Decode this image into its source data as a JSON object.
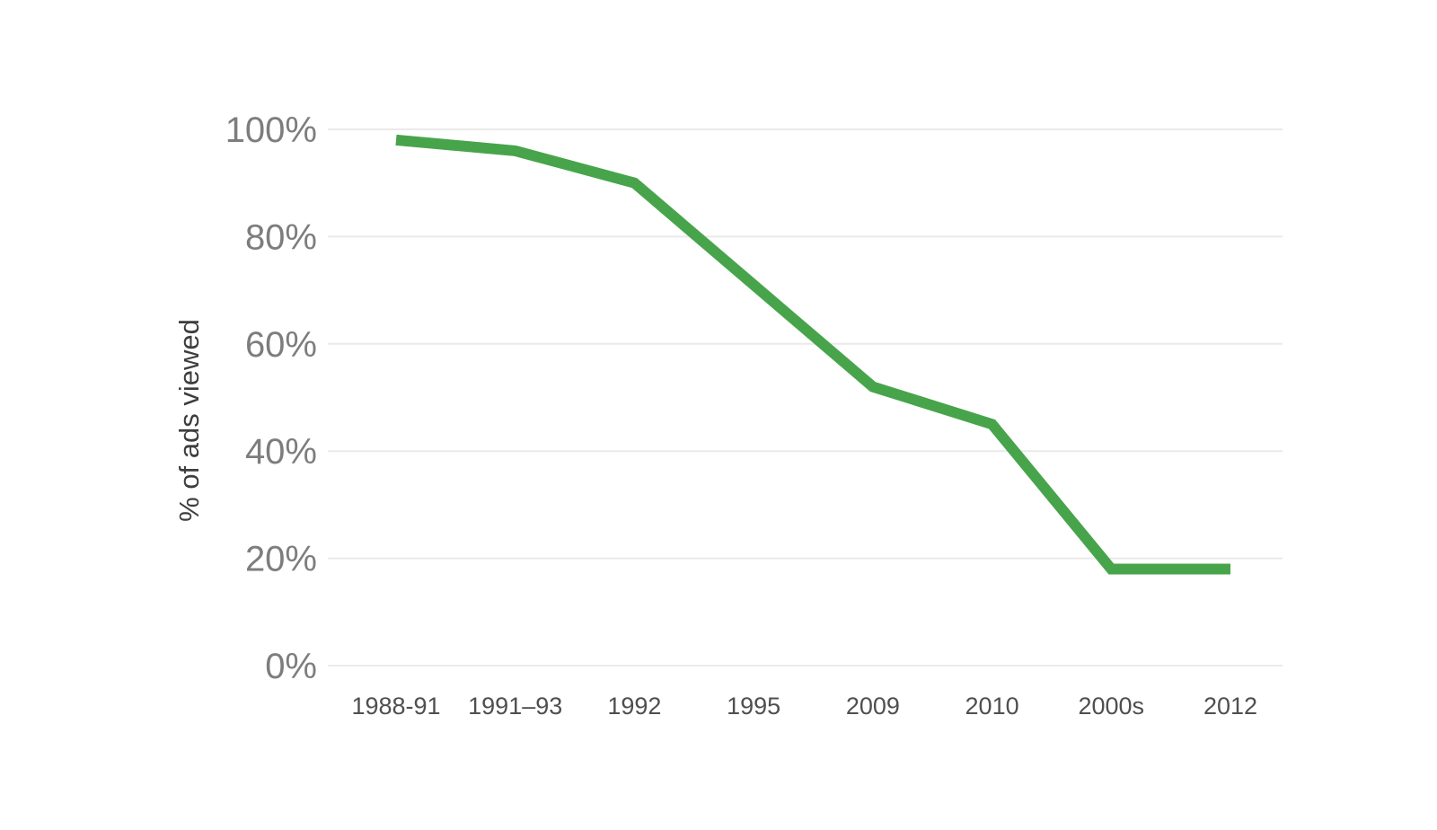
{
  "chart_data": {
    "type": "line",
    "title": "",
    "categories": [
      "1988-91",
      "1991–93",
      "1992",
      "1995",
      "2009",
      "2010",
      "2000s",
      "2012"
    ],
    "values": [
      98,
      96,
      90,
      71,
      52,
      45,
      18,
      18
    ],
    "xlabel": "",
    "ylabel": "% of ads viewed",
    "ylim": [
      0,
      100
    ],
    "y_tick_values": [
      0,
      20,
      40,
      60,
      80,
      100
    ],
    "y_tick_labels": [
      "0%",
      "20%",
      "40%",
      "60%",
      "80%",
      "100%"
    ],
    "grid": "horizontal",
    "legend": "none",
    "line_color": "#47a44b",
    "grid_color": "#eaeaea",
    "background_color": "#ffffff"
  }
}
